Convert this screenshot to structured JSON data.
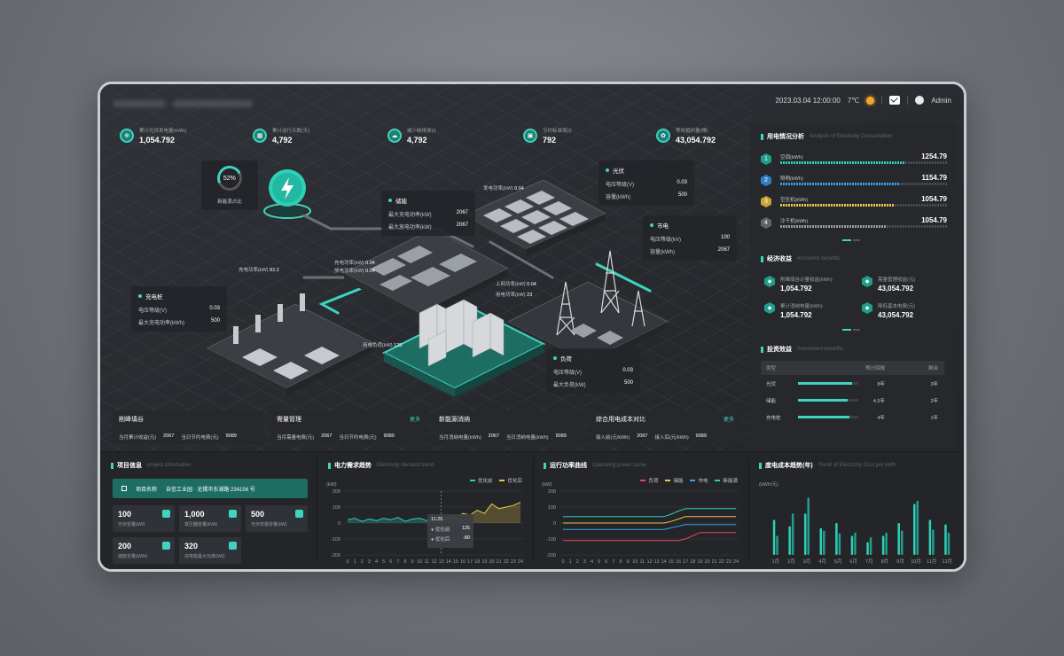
{
  "topbar": {
    "datetime": "2023.03.04  12:00:00",
    "temp": "7℃",
    "user": "Admin"
  },
  "stats": [
    {
      "label": "累计光伏发电量(kWh)",
      "value": "1,054.792",
      "icon": "solar-icon"
    },
    {
      "label": "累计运行天数(天)",
      "value": "4,792",
      "icon": "calendar-icon"
    },
    {
      "label": "减少碳排放(t)",
      "value": "4,792",
      "icon": "cloud-icon"
    },
    {
      "label": "节约标准煤(t)",
      "value": "792",
      "icon": "box-icon"
    },
    {
      "label": "等效植树量(棵)",
      "value": "43,054.792",
      "icon": "tree-icon"
    }
  ],
  "ratio": {
    "value": "52%",
    "label": "新能源占比"
  },
  "cards": {
    "pv": {
      "title": "光伏",
      "rows": [
        {
          "k": "电压等级(V)",
          "v": "0.03"
        },
        {
          "k": "容量(kWh)",
          "v": "500"
        }
      ]
    },
    "storage": {
      "title": "储能",
      "rows": [
        {
          "k": "最大充电功率(kW)",
          "v": "2067"
        },
        {
          "k": "最大放电功率(kW)",
          "v": "2067"
        }
      ]
    },
    "grid": {
      "title": "市电",
      "rows": [
        {
          "k": "电压等级(kV)",
          "v": "100"
        },
        {
          "k": "容量(kWh)",
          "v": "2067"
        }
      ]
    },
    "charger": {
      "title": "充电桩",
      "rows": [
        {
          "k": "电压等级(V)",
          "v": "0.03"
        },
        {
          "k": "最大充电功率(kWh)",
          "v": "500"
        }
      ]
    },
    "load": {
      "title": "负荷",
      "rows": [
        {
          "k": "电压等级(V)",
          "v": "0.03"
        },
        {
          "k": "最大负荷(kW)",
          "v": "500"
        }
      ]
    }
  },
  "flows": [
    {
      "k": "发电功率(kW)",
      "v": "0.04"
    },
    {
      "k": "充电功率(kW)",
      "v": "82.2"
    },
    {
      "k": "充电功率(kW)",
      "v": "0.04"
    },
    {
      "k": "放电功率(kW)",
      "v": "0.04"
    },
    {
      "k": "上网功率(kW)",
      "v": "0.04"
    },
    {
      "k": "用电功率(kW)",
      "v": "23"
    },
    {
      "k": "用电负荷(kW)",
      "v": "125"
    }
  ],
  "bottom_cards": [
    {
      "title": "削峰填谷",
      "more": "",
      "items": [
        {
          "k": "当月累计收益(元)",
          "v": "2067"
        },
        {
          "k": "当日节约电费(元)",
          "v": "9089"
        }
      ]
    },
    {
      "title": "需量管理",
      "more": "更多",
      "items": [
        {
          "k": "当月需量电费(元)",
          "v": "2067"
        },
        {
          "k": "当日节约电费(元)",
          "v": "9089"
        }
      ]
    },
    {
      "title": "新能源消纳",
      "more": "",
      "items": [
        {
          "k": "当月消纳电量(kWh)",
          "v": "2067"
        },
        {
          "k": "当日消纳电量(kWh)",
          "v": "9089"
        }
      ]
    },
    {
      "title": "综合用电成本对比",
      "more": "更多",
      "items": [
        {
          "k": "接入前(元/kWh)",
          "v": "2067"
        },
        {
          "k": "接入后(元/kWh)",
          "v": "9089"
        }
      ]
    }
  ],
  "consumption": {
    "title": "用电情况分析",
    "subtitle": "Analysis of Electricity Consumption",
    "items": [
      {
        "rank": "1",
        "name": "空调(kWh)",
        "value": "1254.79",
        "pct": 0.75,
        "color": "#2fd0b8",
        "badge": "#1f9e8c"
      },
      {
        "rank": "2",
        "name": "照明(kWh)",
        "value": "1154.79",
        "pct": 0.72,
        "color": "#3aa0e8",
        "badge": "#2d7fc4"
      },
      {
        "rank": "3",
        "name": "空压机(kWh)",
        "value": "1054.79",
        "pct": 0.68,
        "color": "#e8c84a",
        "badge": "#c9a22f"
      },
      {
        "rank": "4",
        "name": "冷干机(kWh)",
        "value": "1054.79",
        "pct": 0.64,
        "color": "#9aa0a6",
        "badge": "#5e6368"
      }
    ]
  },
  "economic": {
    "title": "经济收益",
    "subtitle": "economic benefits",
    "items": [
      {
        "k": "削峰填谷计量收益(kWh)",
        "v": "1,054.792"
      },
      {
        "k": "需量管理收益(元)",
        "v": "43,054.792"
      },
      {
        "k": "累计消纳电量(kWh)",
        "v": "1,054.792"
      },
      {
        "k": "降低基本电费(元)",
        "v": "43,054.792"
      }
    ]
  },
  "investment": {
    "title": "投资效益",
    "subtitle": "Investment benefits",
    "headers": [
      "类型",
      "预计回报",
      "剩余"
    ],
    "rows": [
      {
        "type": "光伏",
        "pct": 0.9,
        "ret": "8年",
        "rem": "3年"
      },
      {
        "type": "储能",
        "pct": 0.82,
        "ret": "4.5年",
        "rem": "2年"
      },
      {
        "type": "充电桩",
        "pct": 0.86,
        "ret": "4年",
        "rem": "1年"
      }
    ]
  },
  "project": {
    "title": "项目信息",
    "subtitle": "project information",
    "name_label": "项目名称",
    "name": "自信工业园 · 无锡市东湖路 234156 号",
    "cells": [
      {
        "v": "100",
        "l": "光伏容量(kW)"
      },
      {
        "v": "1,000",
        "l": "变压器容量(kVA)"
      },
      {
        "v": "500",
        "l": "光伏安装容量(kW)"
      },
      {
        "v": "200",
        "l": "储能容量(kWh)"
      },
      {
        "v": "320",
        "l": "充电桩最大功率(kW)"
      }
    ]
  },
  "demand": {
    "title": "电力需求趋势",
    "subtitle": "Electricity demand trend",
    "legend": [
      "优化前",
      "优化后"
    ],
    "unit": "(kW)",
    "tooltip": {
      "time": "11:25",
      "a_label": "优化前",
      "a": "125",
      "b_label": "优化后",
      "b": "-80"
    }
  },
  "power": {
    "title": "运行功率曲线",
    "subtitle": "Operating power curve",
    "legend": [
      "负荷",
      "储能",
      "市电",
      "新能源"
    ],
    "unit": "(kW)"
  },
  "cost": {
    "title": "度电成本趋势(年)",
    "subtitle": "Trend of Electricity Cost per kWh",
    "unit": "(kWh/元)"
  },
  "chart_data": [
    {
      "type": "area",
      "title": "电力需求趋势",
      "x": [
        "0",
        "1",
        "2",
        "3",
        "4",
        "5",
        "6",
        "7",
        "8",
        "9",
        "10",
        "11",
        "12",
        "13",
        "14",
        "15",
        "16",
        "17",
        "18",
        "19",
        "20",
        "21",
        "22",
        "23",
        "24"
      ],
      "ylim": [
        -200,
        200
      ],
      "yticks": [
        "200",
        "100",
        "0",
        "-100",
        "-200"
      ],
      "series": [
        {
          "name": "优化前",
          "values": [
            20,
            30,
            10,
            25,
            15,
            30,
            20,
            35,
            10,
            25,
            30,
            15,
            20,
            10,
            null,
            null,
            null,
            null,
            null,
            null,
            null,
            null,
            null,
            null,
            null
          ]
        },
        {
          "name": "优化后",
          "values": [
            null,
            null,
            null,
            null,
            null,
            null,
            null,
            null,
            null,
            null,
            null,
            null,
            null,
            10,
            40,
            30,
            60,
            50,
            80,
            60,
            120,
            90,
            100,
            110,
            130
          ]
        }
      ]
    },
    {
      "type": "line",
      "title": "运行功率曲线",
      "x": [
        "0",
        "1",
        "2",
        "3",
        "4",
        "5",
        "6",
        "7",
        "8",
        "9",
        "10",
        "11",
        "12",
        "13",
        "14",
        "15",
        "16",
        "17",
        "18",
        "19",
        "20",
        "21",
        "22",
        "23",
        "24"
      ],
      "ylim": [
        -200,
        200
      ],
      "yticks": [
        "200",
        "100",
        "0",
        "-100",
        "-200"
      ],
      "series": [
        {
          "name": "负荷",
          "values": [
            -110,
            -110,
            -110,
            -110,
            -110,
            -110,
            -110,
            -110,
            -110,
            -110,
            -110,
            -110,
            -110,
            -110,
            -110,
            -110,
            -110,
            -100,
            -80,
            -60,
            -60,
            -60,
            -60,
            -60,
            -60
          ]
        },
        {
          "name": "储能",
          "values": [
            0,
            0,
            0,
            0,
            0,
            0,
            0,
            0,
            0,
            0,
            0,
            0,
            0,
            0,
            0,
            10,
            25,
            40,
            40,
            40,
            40,
            40,
            40,
            40,
            40
          ]
        },
        {
          "name": "市电",
          "values": [
            -40,
            -40,
            -40,
            -40,
            -40,
            -40,
            -40,
            -40,
            -40,
            -40,
            -40,
            -40,
            -40,
            -40,
            -40,
            -30,
            -20,
            -10,
            -10,
            -10,
            -10,
            -10,
            -10,
            -10,
            -10
          ]
        },
        {
          "name": "新能源",
          "values": [
            40,
            40,
            40,
            40,
            40,
            40,
            40,
            40,
            40,
            40,
            40,
            40,
            40,
            40,
            40,
            55,
            75,
            90,
            90,
            90,
            90,
            90,
            90,
            90,
            90
          ]
        }
      ]
    },
    {
      "type": "bar",
      "title": "度电成本趋势(年)",
      "categories": [
        "1月",
        "2月",
        "3月",
        "4月",
        "5月",
        "6月",
        "7月",
        "8月",
        "9月",
        "10月",
        "11月",
        "12月"
      ],
      "ylim": [
        0,
        1
      ],
      "series": [
        {
          "values": [
            0.55,
            0.45,
            0.65,
            0.42,
            0.5,
            0.3,
            0.2,
            0.3,
            0.5,
            0.8,
            0.55,
            0.48
          ]
        },
        {
          "values": [
            0.3,
            0.65,
            0.9,
            0.38,
            0.34,
            0.35,
            0.28,
            0.35,
            0.38,
            0.85,
            0.4,
            0.35
          ]
        }
      ]
    }
  ],
  "colors": {
    "accent": "#3fd3c0",
    "demand_before": "#2fd0b8",
    "demand_after": "#e8c84a",
    "load": "#e8485a",
    "storage": "#e8c84a",
    "grid": "#3aa0e8",
    "newenergy": "#2fd0b8"
  }
}
